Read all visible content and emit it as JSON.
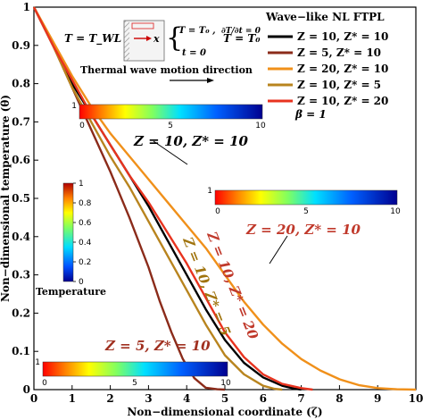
{
  "chart_data": {
    "type": "line",
    "xlabel": "Non−dimensional coordinate (ζ)",
    "ylabel": "Non−dimensional temperature (θ)",
    "xlim": [
      0,
      10
    ],
    "ylim": [
      0,
      1
    ],
    "xticks": [
      "0",
      "1",
      "2",
      "3",
      "4",
      "5",
      "6",
      "7",
      "8",
      "9",
      "10"
    ],
    "yticks": [
      "0",
      "0.1",
      "0.2",
      "0.3",
      "0.4",
      "0.5",
      "0.6",
      "0.7",
      "0.8",
      "0.9",
      "1"
    ],
    "legend_title": "Wave−like NL FTPL",
    "legend_position": "top-right",
    "legend_note": "β = 1",
    "series": [
      {
        "name": "Z = 10, Z* = 10",
        "color": "#000000",
        "points": [
          [
            0,
            1
          ],
          [
            0.5,
            0.9
          ],
          [
            1,
            0.8
          ],
          [
            1.5,
            0.72
          ],
          [
            2,
            0.64
          ],
          [
            2.5,
            0.56
          ],
          [
            3,
            0.48
          ],
          [
            3.5,
            0.39
          ],
          [
            4,
            0.3
          ],
          [
            4.5,
            0.21
          ],
          [
            5,
            0.13
          ],
          [
            5.5,
            0.07
          ],
          [
            6,
            0.032
          ],
          [
            6.5,
            0.01
          ],
          [
            6.8,
            0.003
          ],
          [
            7,
            0
          ]
        ]
      },
      {
        "name": "Z = 5, Z* = 10",
        "color": "#8b2b1a",
        "points": [
          [
            0,
            1
          ],
          [
            0.5,
            0.9
          ],
          [
            1,
            0.79
          ],
          [
            1.5,
            0.68
          ],
          [
            2,
            0.57
          ],
          [
            2.5,
            0.45
          ],
          [
            3,
            0.32
          ],
          [
            3.3,
            0.23
          ],
          [
            3.6,
            0.15
          ],
          [
            3.9,
            0.08
          ],
          [
            4.2,
            0.03
          ],
          [
            4.5,
            0.005
          ],
          [
            4.8,
            0.001
          ],
          [
            5,
            0
          ]
        ]
      },
      {
        "name": "Z = 20, Z* = 10",
        "color": "#f0901a",
        "points": [
          [
            0,
            1
          ],
          [
            0.5,
            0.91
          ],
          [
            1,
            0.82
          ],
          [
            1.5,
            0.74
          ],
          [
            2,
            0.67
          ],
          [
            2.5,
            0.61
          ],
          [
            3,
            0.55
          ],
          [
            3.5,
            0.49
          ],
          [
            4,
            0.43
          ],
          [
            4.5,
            0.37
          ],
          [
            5,
            0.3
          ],
          [
            5.5,
            0.23
          ],
          [
            6,
            0.17
          ],
          [
            6.5,
            0.12
          ],
          [
            7,
            0.08
          ],
          [
            7.5,
            0.05
          ],
          [
            8,
            0.027
          ],
          [
            8.5,
            0.012
          ],
          [
            9,
            0.004
          ],
          [
            9.5,
            0.001
          ],
          [
            10,
            0
          ]
        ]
      },
      {
        "name": "Z = 10, Z* = 5",
        "color": "#b8841e",
        "points": [
          [
            0,
            1
          ],
          [
            0.5,
            0.9
          ],
          [
            1,
            0.79
          ],
          [
            1.5,
            0.7
          ],
          [
            2,
            0.61
          ],
          [
            2.5,
            0.53
          ],
          [
            3,
            0.44
          ],
          [
            3.5,
            0.35
          ],
          [
            4,
            0.26
          ],
          [
            4.5,
            0.17
          ],
          [
            5,
            0.09
          ],
          [
            5.5,
            0.04
          ],
          [
            6,
            0.01
          ],
          [
            6.3,
            0.002
          ],
          [
            6.5,
            0
          ]
        ]
      },
      {
        "name": "Z = 10, Z* = 20",
        "color": "#e8331f",
        "points": [
          [
            0,
            1
          ],
          [
            0.5,
            0.9
          ],
          [
            1,
            0.81
          ],
          [
            1.5,
            0.72
          ],
          [
            2,
            0.64
          ],
          [
            2.5,
            0.56
          ],
          [
            3,
            0.49
          ],
          [
            3.5,
            0.41
          ],
          [
            4,
            0.33
          ],
          [
            4.5,
            0.24
          ],
          [
            5,
            0.15
          ],
          [
            5.5,
            0.085
          ],
          [
            6,
            0.04
          ],
          [
            6.5,
            0.015
          ],
          [
            7,
            0.004
          ],
          [
            7.3,
            0
          ]
        ]
      }
    ],
    "annotations": [
      {
        "text": "Z = 10, Z* = 10",
        "color": "#000000"
      },
      {
        "text": "Z = 20, Z* = 10",
        "color": "#c0392b"
      },
      {
        "text": "Z = 10, Z* = 20",
        "color": "#c0392b"
      },
      {
        "text": "Z = 10, Z* = 5",
        "color": "#a0740e"
      },
      {
        "text": "Z = 5, Z* = 10",
        "color": "#a03020"
      }
    ],
    "colorbar": {
      "label": "Temperature",
      "ticks": [
        "0",
        "0.2",
        "0.4",
        "0.6",
        "0.8",
        "1"
      ],
      "range": [
        0,
        1
      ]
    },
    "strip_ticks": [
      "1",
      "0",
      "5",
      "10"
    ],
    "inset": {
      "boundary_left": "T = T_WL",
      "axis_var": "x",
      "conditions": [
        "T = T₀ ,",
        "∂T/∂t = 0",
        "t = 0"
      ],
      "boundary_right": "T = T₀",
      "motion_caption": "Thermal wave motion direction"
    }
  }
}
